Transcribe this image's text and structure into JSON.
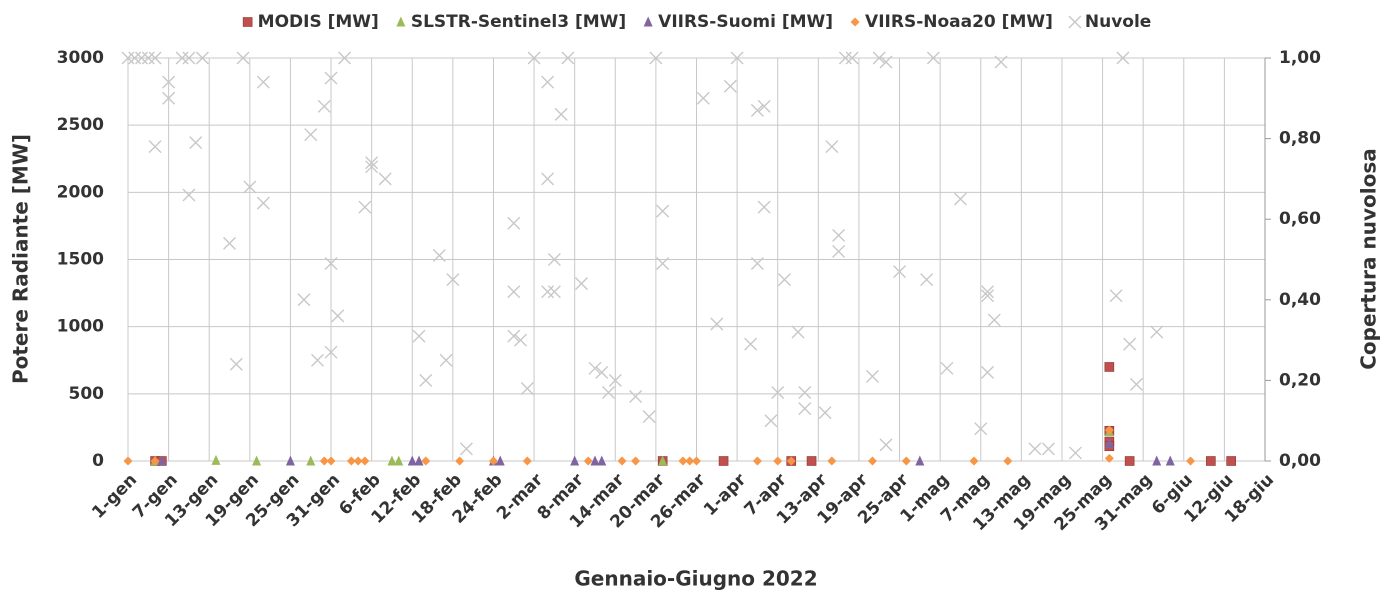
{
  "chart_data": {
    "type": "scatter",
    "x_label": "Gennaio-Giugno 2022",
    "y_label": "Potere Radiante [MW]",
    "y2_label": "Copertura nuvolosa",
    "xlim": [
      0,
      168
    ],
    "xticks": [
      {
        "value": 0,
        "label": "1-gen"
      },
      {
        "value": 6,
        "label": "7-gen"
      },
      {
        "value": 12,
        "label": "13-gen"
      },
      {
        "value": 18,
        "label": "19-gen"
      },
      {
        "value": 24,
        "label": "25-gen"
      },
      {
        "value": 30,
        "label": "31-gen"
      },
      {
        "value": 36,
        "label": "6-feb"
      },
      {
        "value": 42,
        "label": "12-feb"
      },
      {
        "value": 48,
        "label": "18-feb"
      },
      {
        "value": 54,
        "label": "24-feb"
      },
      {
        "value": 60,
        "label": "2-mar"
      },
      {
        "value": 66,
        "label": "8-mar"
      },
      {
        "value": 72,
        "label": "14-mar"
      },
      {
        "value": 78,
        "label": "20-mar"
      },
      {
        "value": 84,
        "label": "26-mar"
      },
      {
        "value": 90,
        "label": "1-apr"
      },
      {
        "value": 96,
        "label": "7-apr"
      },
      {
        "value": 102,
        "label": "13-apr"
      },
      {
        "value": 108,
        "label": "19-apr"
      },
      {
        "value": 114,
        "label": "25-apr"
      },
      {
        "value": 120,
        "label": "1-mag"
      },
      {
        "value": 126,
        "label": "7-mag"
      },
      {
        "value": 132,
        "label": "13-mag"
      },
      {
        "value": 138,
        "label": "19-mag"
      },
      {
        "value": 144,
        "label": "25-mag"
      },
      {
        "value": 150,
        "label": "31-mag"
      },
      {
        "value": 156,
        "label": "6-giu"
      },
      {
        "value": 162,
        "label": "12-giu"
      },
      {
        "value": 168,
        "label": "18-giu"
      }
    ],
    "ylim": [
      0,
      3000
    ],
    "yticks": [
      0,
      500,
      1000,
      1500,
      2000,
      2500,
      3000
    ],
    "y2lim": [
      0,
      1
    ],
    "y2ticks": [
      {
        "value": 0,
        "label": "0,00"
      },
      {
        "value": 0.2,
        "label": "0,20"
      },
      {
        "value": 0.4,
        "label": "0,40"
      },
      {
        "value": 0.6,
        "label": "0,60"
      },
      {
        "value": 0.8,
        "label": "0,80"
      },
      {
        "value": 1,
        "label": "1,00"
      }
    ],
    "grid": true,
    "legend": "top",
    "series": [
      {
        "name": "MODIS [MW]",
        "color": "#c0504d",
        "marker": "square",
        "x": [
          4,
          5,
          79,
          88,
          98,
          101,
          145,
          145,
          145,
          145,
          148,
          160,
          163
        ],
        "values": [
          0,
          0,
          0,
          0,
          0,
          0,
          700,
          225,
          145,
          110,
          0,
          0,
          0
        ]
      },
      {
        "name": "SLSTR-Sentinel3 [MW]",
        "color": "#9bbb59",
        "marker": "triangle",
        "x": [
          4,
          13,
          19,
          27,
          39,
          40,
          79,
          145
        ],
        "values": [
          0,
          5,
          0,
          0,
          0,
          0,
          0,
          220
        ]
      },
      {
        "name": "VIIRS-Suomi  [MW]",
        "color": "#8064a2",
        "marker": "triangle",
        "x": [
          5,
          24,
          42,
          43,
          54,
          55,
          66,
          69,
          70,
          117,
          145,
          152,
          154
        ],
        "values": [
          0,
          0,
          0,
          0,
          0,
          0,
          0,
          0,
          0,
          0,
          130,
          0,
          0
        ]
      },
      {
        "name": "VIIRS-Noaa20 [MW]",
        "color": "#f79646",
        "marker": "diamond",
        "x": [
          0,
          4,
          29,
          30,
          33,
          34,
          35,
          44,
          49,
          54,
          59,
          68,
          73,
          75,
          82,
          83,
          84,
          93,
          96,
          98,
          104,
          110,
          115,
          125,
          130,
          145,
          145,
          157
        ],
        "values": [
          0,
          0,
          0,
          0,
          0,
          0,
          0,
          0,
          0,
          0,
          0,
          0,
          0,
          0,
          0,
          0,
          0,
          0,
          0,
          0,
          0,
          0,
          0,
          0,
          0,
          230,
          20,
          0
        ]
      },
      {
        "name": "Nuvole",
        "color": "#c8c8c8",
        "marker": "x",
        "axis": "y2",
        "x": [
          0,
          1,
          2,
          3,
          4,
          4,
          6,
          6,
          8,
          9,
          10,
          9,
          11,
          15,
          16,
          17,
          18,
          20,
          20,
          26,
          27,
          28,
          29,
          30,
          30,
          30,
          31,
          32,
          35,
          36,
          36,
          38,
          43,
          44,
          46,
          47,
          48,
          50,
          57,
          57,
          57,
          58,
          59,
          60,
          62,
          62,
          62,
          63,
          63,
          64,
          65,
          67,
          69,
          70,
          71,
          72,
          75,
          77,
          78,
          79,
          79,
          85,
          87,
          89,
          90,
          92,
          93,
          93,
          94,
          94,
          95,
          96,
          97,
          99,
          100,
          100,
          103,
          104,
          105,
          105,
          106,
          107,
          110,
          111,
          112,
          112,
          114,
          118,
          119,
          121,
          123,
          126,
          127,
          127,
          127,
          128,
          129,
          134,
          136,
          140,
          146,
          147,
          148,
          149,
          152
        ],
        "values": [
          1,
          1,
          1,
          1,
          1,
          0.78,
          0.9,
          0.94,
          1,
          0.66,
          0.79,
          1,
          1,
          0.54,
          0.24,
          1,
          0.68,
          0.94,
          0.64,
          0.4,
          0.81,
          0.25,
          0.88,
          0.27,
          0.49,
          0.95,
          0.36,
          1,
          0.63,
          0.74,
          0.73,
          0.7,
          0.31,
          0.2,
          0.51,
          0.25,
          0.45,
          0.03,
          0.42,
          0.59,
          0.31,
          0.3,
          0.18,
          1,
          0.94,
          0.7,
          0.42,
          0.5,
          0.42,
          0.86,
          1,
          0.44,
          0.23,
          0.22,
          0.17,
          0.2,
          0.16,
          0.11,
          1,
          0.62,
          0.49,
          0.9,
          0.34,
          0.93,
          1,
          0.29,
          0.49,
          0.87,
          0.88,
          0.63,
          0.1,
          0.17,
          0.45,
          0.32,
          0.17,
          0.13,
          0.12,
          0.78,
          0.56,
          0.52,
          1,
          1,
          0.21,
          1,
          0.99,
          0.04,
          0.47,
          0.45,
          1,
          0.23,
          0.65,
          0.08,
          0.41,
          0.42,
          0.22,
          0.35,
          0.99,
          0.03,
          0.03,
          0.02,
          0.41,
          1,
          0.29,
          0.19,
          0.32
        ]
      }
    ]
  }
}
